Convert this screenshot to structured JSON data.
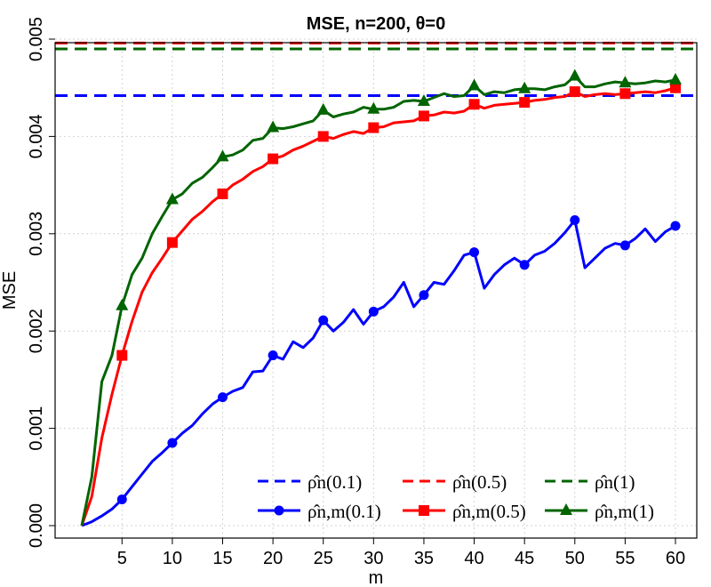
{
  "chart_data": {
    "type": "line",
    "title": "MSE, n=200, θ=0",
    "xlabel": "m",
    "ylabel": "MSE",
    "xlim": [
      1,
      60
    ],
    "ylim": [
      0,
      0.005
    ],
    "grid": true,
    "x_ticks": [
      5,
      10,
      15,
      20,
      25,
      30,
      35,
      40,
      45,
      50,
      55,
      60
    ],
    "x_tick_labels": [
      "5",
      "10",
      "15",
      "20",
      "25",
      "30",
      "35",
      "40",
      "45",
      "50",
      "55",
      "60"
    ],
    "y_ticks": [
      0,
      0.001,
      0.002,
      0.003,
      0.004,
      0.005
    ],
    "y_tick_labels": [
      "0.000",
      "0.001",
      "0.002",
      "0.003",
      "0.004",
      "0.005"
    ],
    "legend_position": "bottom-right",
    "hlines": [
      {
        "name": "ρ̂n(0.1)",
        "value": 0.00442,
        "color": "#0000ff"
      },
      {
        "name": "ρ̂n(0.5)",
        "value": 0.00496,
        "color": "#ff0000"
      },
      {
        "name": "ρ̂n(1)",
        "value": 0.0049,
        "color": "#006400"
      }
    ],
    "series": [
      {
        "name": "ρ̂n,m(0.1)",
        "color": "#0000ff",
        "marker": "circle",
        "marker_x": [
          5,
          10,
          15,
          20,
          25,
          30,
          35,
          40,
          45,
          50,
          55,
          60
        ],
        "x": [
          1,
          2,
          3,
          4,
          5,
          6,
          7,
          8,
          9,
          10,
          11,
          12,
          13,
          14,
          15,
          16,
          17,
          18,
          19,
          20,
          21,
          22,
          23,
          24,
          25,
          26,
          27,
          28,
          29,
          30,
          31,
          32,
          33,
          34,
          35,
          36,
          37,
          38,
          39,
          40,
          41,
          42,
          43,
          44,
          45,
          46,
          47,
          48,
          49,
          50,
          51,
          52,
          53,
          54,
          55,
          56,
          57,
          58,
          59,
          60
        ],
        "values": [
          0,
          4e-05,
          0.0001,
          0.00017,
          0.00027,
          0.0004,
          0.00053,
          0.00066,
          0.00075,
          0.00085,
          0.00095,
          0.00103,
          0.00115,
          0.00125,
          0.00132,
          0.00138,
          0.00142,
          0.00158,
          0.00159,
          0.00175,
          0.00171,
          0.00189,
          0.00183,
          0.00193,
          0.00211,
          0.002,
          0.00209,
          0.00222,
          0.00207,
          0.0022,
          0.00225,
          0.00235,
          0.0025,
          0.00225,
          0.00237,
          0.0025,
          0.00248,
          0.00262,
          0.00278,
          0.00281,
          0.00244,
          0.00258,
          0.00268,
          0.00275,
          0.00268,
          0.00278,
          0.00282,
          0.0029,
          0.00301,
          0.00314,
          0.00265,
          0.00275,
          0.00285,
          0.0029,
          0.00288,
          0.00295,
          0.00305,
          0.00292,
          0.00302,
          0.00308
        ]
      },
      {
        "name": "ρ̂n,m(0.5)",
        "color": "#ff0000",
        "marker": "square",
        "marker_x": [
          5,
          10,
          15,
          20,
          25,
          30,
          35,
          40,
          45,
          50,
          55,
          60
        ],
        "x": [
          1,
          2,
          3,
          4,
          5,
          6,
          7,
          8,
          9,
          10,
          11,
          12,
          13,
          14,
          15,
          16,
          17,
          18,
          19,
          20,
          21,
          22,
          23,
          24,
          25,
          26,
          27,
          28,
          29,
          30,
          31,
          32,
          33,
          34,
          35,
          36,
          37,
          38,
          39,
          40,
          41,
          42,
          43,
          44,
          45,
          46,
          47,
          48,
          49,
          50,
          51,
          52,
          53,
          54,
          55,
          56,
          57,
          58,
          59,
          60
        ],
        "values": [
          0,
          0.0003,
          0.0009,
          0.00135,
          0.00175,
          0.0021,
          0.0024,
          0.0026,
          0.00275,
          0.00291,
          0.00303,
          0.00315,
          0.00323,
          0.00333,
          0.00341,
          0.0035,
          0.00356,
          0.00364,
          0.00369,
          0.00377,
          0.0038,
          0.00386,
          0.0039,
          0.00395,
          0.004,
          0.00398,
          0.00402,
          0.00405,
          0.00403,
          0.00409,
          0.0041,
          0.00414,
          0.00415,
          0.00416,
          0.00421,
          0.00422,
          0.00425,
          0.00424,
          0.00426,
          0.00433,
          0.00429,
          0.00432,
          0.00433,
          0.00434,
          0.00435,
          0.00437,
          0.00438,
          0.0044,
          0.00441,
          0.00446,
          0.00441,
          0.00443,
          0.00444,
          0.00443,
          0.00444,
          0.00445,
          0.00446,
          0.00445,
          0.00447,
          0.0045
        ]
      },
      {
        "name": "ρ̂n,m(1)",
        "color": "#006400",
        "marker": "triangle",
        "marker_x": [
          5,
          10,
          15,
          20,
          25,
          30,
          35,
          40,
          45,
          50,
          55,
          60
        ],
        "x": [
          1,
          2,
          3,
          4,
          5,
          6,
          7,
          8,
          9,
          10,
          11,
          12,
          13,
          14,
          15,
          16,
          17,
          18,
          19,
          20,
          21,
          22,
          23,
          24,
          25,
          26,
          27,
          28,
          29,
          30,
          31,
          32,
          33,
          34,
          35,
          36,
          37,
          38,
          39,
          40,
          41,
          42,
          43,
          44,
          45,
          46,
          47,
          48,
          49,
          50,
          51,
          52,
          53,
          54,
          55,
          56,
          57,
          58,
          59,
          60
        ],
        "values": [
          0,
          0.0005,
          0.00148,
          0.00175,
          0.00226,
          0.00258,
          0.00275,
          0.003,
          0.00318,
          0.00335,
          0.00341,
          0.00352,
          0.00358,
          0.00368,
          0.00379,
          0.00381,
          0.00386,
          0.00396,
          0.00398,
          0.00409,
          0.00408,
          0.0041,
          0.00413,
          0.00416,
          0.00427,
          0.0042,
          0.00423,
          0.00425,
          0.0043,
          0.00428,
          0.00428,
          0.0043,
          0.00436,
          0.00437,
          0.00436,
          0.0044,
          0.00444,
          0.00441,
          0.00442,
          0.00452,
          0.00443,
          0.00446,
          0.00445,
          0.00448,
          0.00449,
          0.00449,
          0.00448,
          0.00451,
          0.00453,
          0.00462,
          0.00451,
          0.00451,
          0.00454,
          0.00456,
          0.00455,
          0.00454,
          0.00455,
          0.00457,
          0.00456,
          0.00458
        ]
      }
    ],
    "legend_rows": [
      [
        "ρ̂n(0.1)",
        "ρ̂n(0.5)",
        "ρ̂n(1)"
      ],
      [
        "ρ̂n,m(0.1)",
        "ρ̂n,m(0.5)",
        "ρ̂n,m(1)"
      ]
    ]
  }
}
